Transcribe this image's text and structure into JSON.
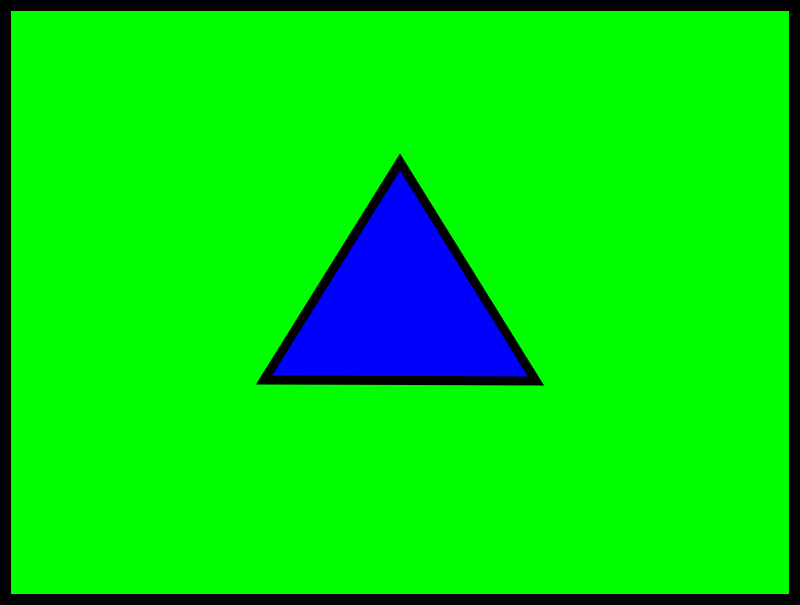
{
  "scene": {
    "background_color": "#00ff00",
    "border_color": "#000000",
    "shape": {
      "type": "triangle",
      "fill_color": "#0000ff",
      "stroke_color": "#000000"
    }
  }
}
